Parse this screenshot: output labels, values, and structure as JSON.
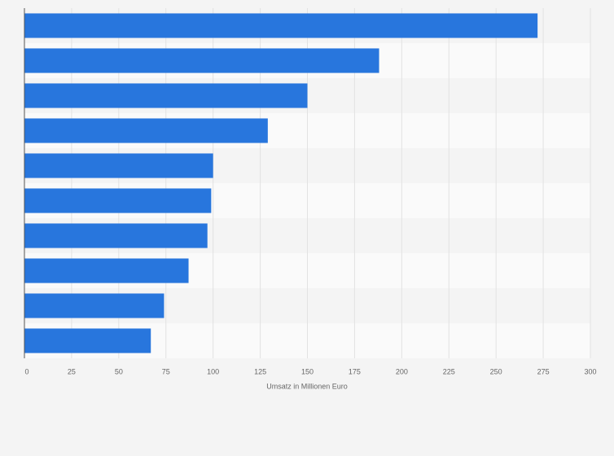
{
  "chart_data": {
    "type": "hbar",
    "xlabel": "Umsatz in Millionen Euro",
    "categories": [
      null,
      null,
      null,
      null,
      null,
      null,
      null,
      null,
      null,
      null
    ],
    "values": [
      272,
      188,
      150,
      129,
      100,
      99,
      97,
      87,
      74,
      67
    ],
    "color": "#2876dd",
    "xlim": [
      0,
      300
    ],
    "xticks": [
      0,
      25,
      50,
      75,
      100,
      125,
      150,
      175,
      200,
      225,
      250,
      275,
      300
    ],
    "grid": true
  }
}
